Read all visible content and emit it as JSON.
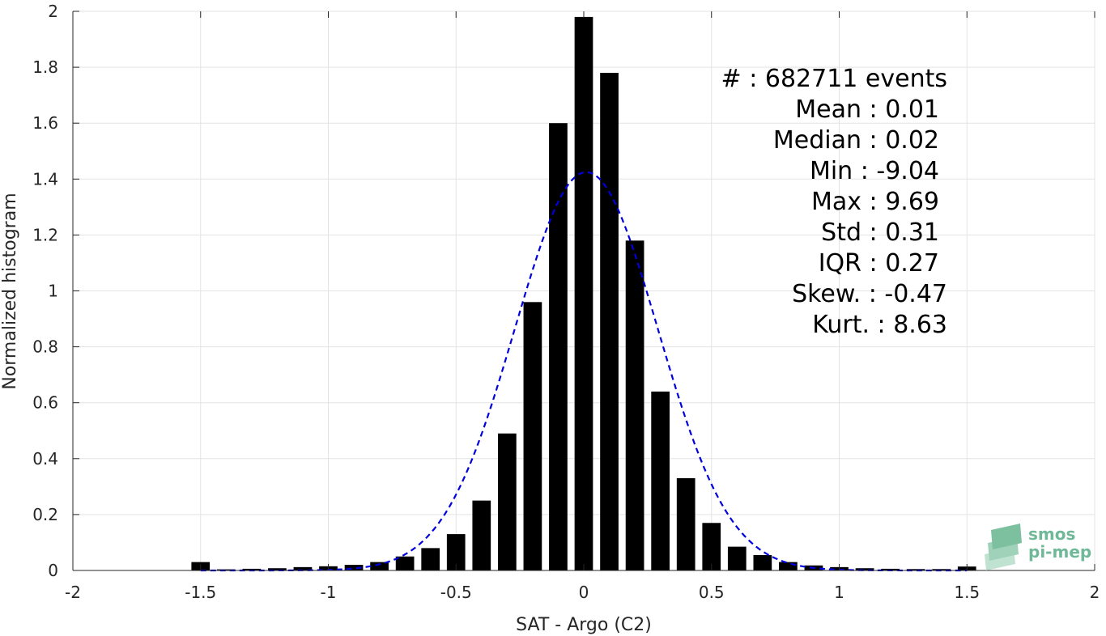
{
  "chart_data": {
    "type": "bar",
    "xlabel": "SAT - Argo (C2)",
    "ylabel": "Normalized histogram",
    "xlim": [
      -2,
      2
    ],
    "ylim": [
      0,
      2
    ],
    "xticks": [
      -2,
      -1.5,
      -1,
      -0.5,
      0,
      0.5,
      1,
      1.5,
      2
    ],
    "xtick_labels": [
      "-2",
      "-1.5",
      "-1",
      "-0.5",
      "0",
      "0.5",
      "1",
      "1.5",
      "2"
    ],
    "yticks": [
      0,
      0.2,
      0.4,
      0.6,
      0.8,
      1,
      1.2,
      1.4,
      1.6,
      1.8,
      2
    ],
    "ytick_labels": [
      "0",
      "0.2",
      "0.4",
      "0.6",
      "0.8",
      "1",
      "1.2",
      "1.4",
      "1.6",
      "1.8",
      "2"
    ],
    "grid": true,
    "bar_color": "#000000",
    "bin_width": 0.1,
    "bins": [
      {
        "x": -1.5,
        "y": 0.03
      },
      {
        "x": -1.4,
        "y": 0.004
      },
      {
        "x": -1.3,
        "y": 0.006
      },
      {
        "x": -1.2,
        "y": 0.008
      },
      {
        "x": -1.1,
        "y": 0.012
      },
      {
        "x": -1.0,
        "y": 0.015
      },
      {
        "x": -0.9,
        "y": 0.02
      },
      {
        "x": -0.8,
        "y": 0.03
      },
      {
        "x": -0.7,
        "y": 0.05
      },
      {
        "x": -0.6,
        "y": 0.08
      },
      {
        "x": -0.5,
        "y": 0.13
      },
      {
        "x": -0.4,
        "y": 0.25
      },
      {
        "x": -0.3,
        "y": 0.49
      },
      {
        "x": -0.2,
        "y": 0.96
      },
      {
        "x": -0.1,
        "y": 1.6
      },
      {
        "x": 0.0,
        "y": 1.98
      },
      {
        "x": 0.1,
        "y": 1.78
      },
      {
        "x": 0.2,
        "y": 1.18
      },
      {
        "x": 0.3,
        "y": 0.64
      },
      {
        "x": 0.4,
        "y": 0.33
      },
      {
        "x": 0.5,
        "y": 0.17
      },
      {
        "x": 0.6,
        "y": 0.085
      },
      {
        "x": 0.7,
        "y": 0.055
      },
      {
        "x": 0.8,
        "y": 0.03
      },
      {
        "x": 0.9,
        "y": 0.018
      },
      {
        "x": 1.0,
        "y": 0.012
      },
      {
        "x": 1.1,
        "y": 0.008
      },
      {
        "x": 1.2,
        "y": 0.006
      },
      {
        "x": 1.3,
        "y": 0.005
      },
      {
        "x": 1.4,
        "y": 0.005
      },
      {
        "x": 1.5,
        "y": 0.014
      }
    ],
    "fit_curve": {
      "type": "gaussian",
      "style": "dashed",
      "color": "#0000dd",
      "mean": 0.01,
      "std": 0.28,
      "peak": 1.425,
      "x_range": [
        -1.5,
        1.5
      ]
    },
    "annotations": [
      "#  : 682711 events",
      "Mean : 0.01",
      "Median : 0.02",
      "Min : -9.04",
      "Max : 9.69",
      "Std : 0.31",
      "IQR : 0.27",
      "Skew. : -0.47",
      "Kurt. : 8.63"
    ]
  },
  "logo": {
    "line1": "smos",
    "line2": "pi-mep",
    "color": "#6fb898"
  }
}
